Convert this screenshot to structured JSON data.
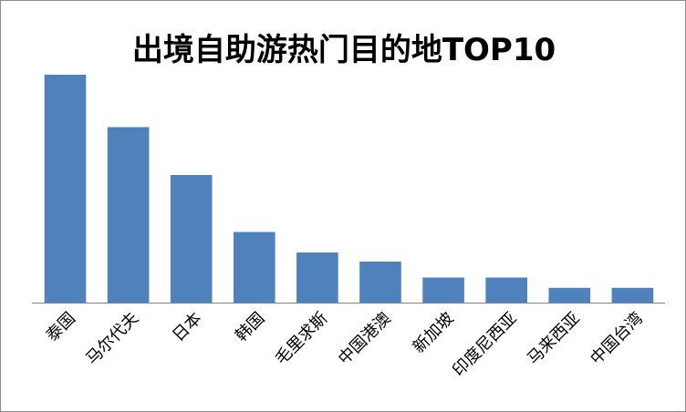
{
  "chart_data": {
    "type": "bar",
    "title": "出境自助游热门目的地TOP10",
    "categories": [
      "泰国",
      "马尔代夫",
      "日本",
      "韩国",
      "毛里求斯",
      "中国港澳",
      "新加坡",
      "印度尼西亚",
      "马来西亚",
      "中国台湾"
    ],
    "values": [
      100,
      77,
      56,
      31,
      22,
      18,
      11,
      11,
      6.5,
      6.5
    ],
    "ylim": [
      0,
      100
    ],
    "xlabel": "",
    "ylabel": "",
    "grid": false,
    "legend": "none",
    "bar_color": "#4f81bd",
    "axis_color": "#868686"
  }
}
